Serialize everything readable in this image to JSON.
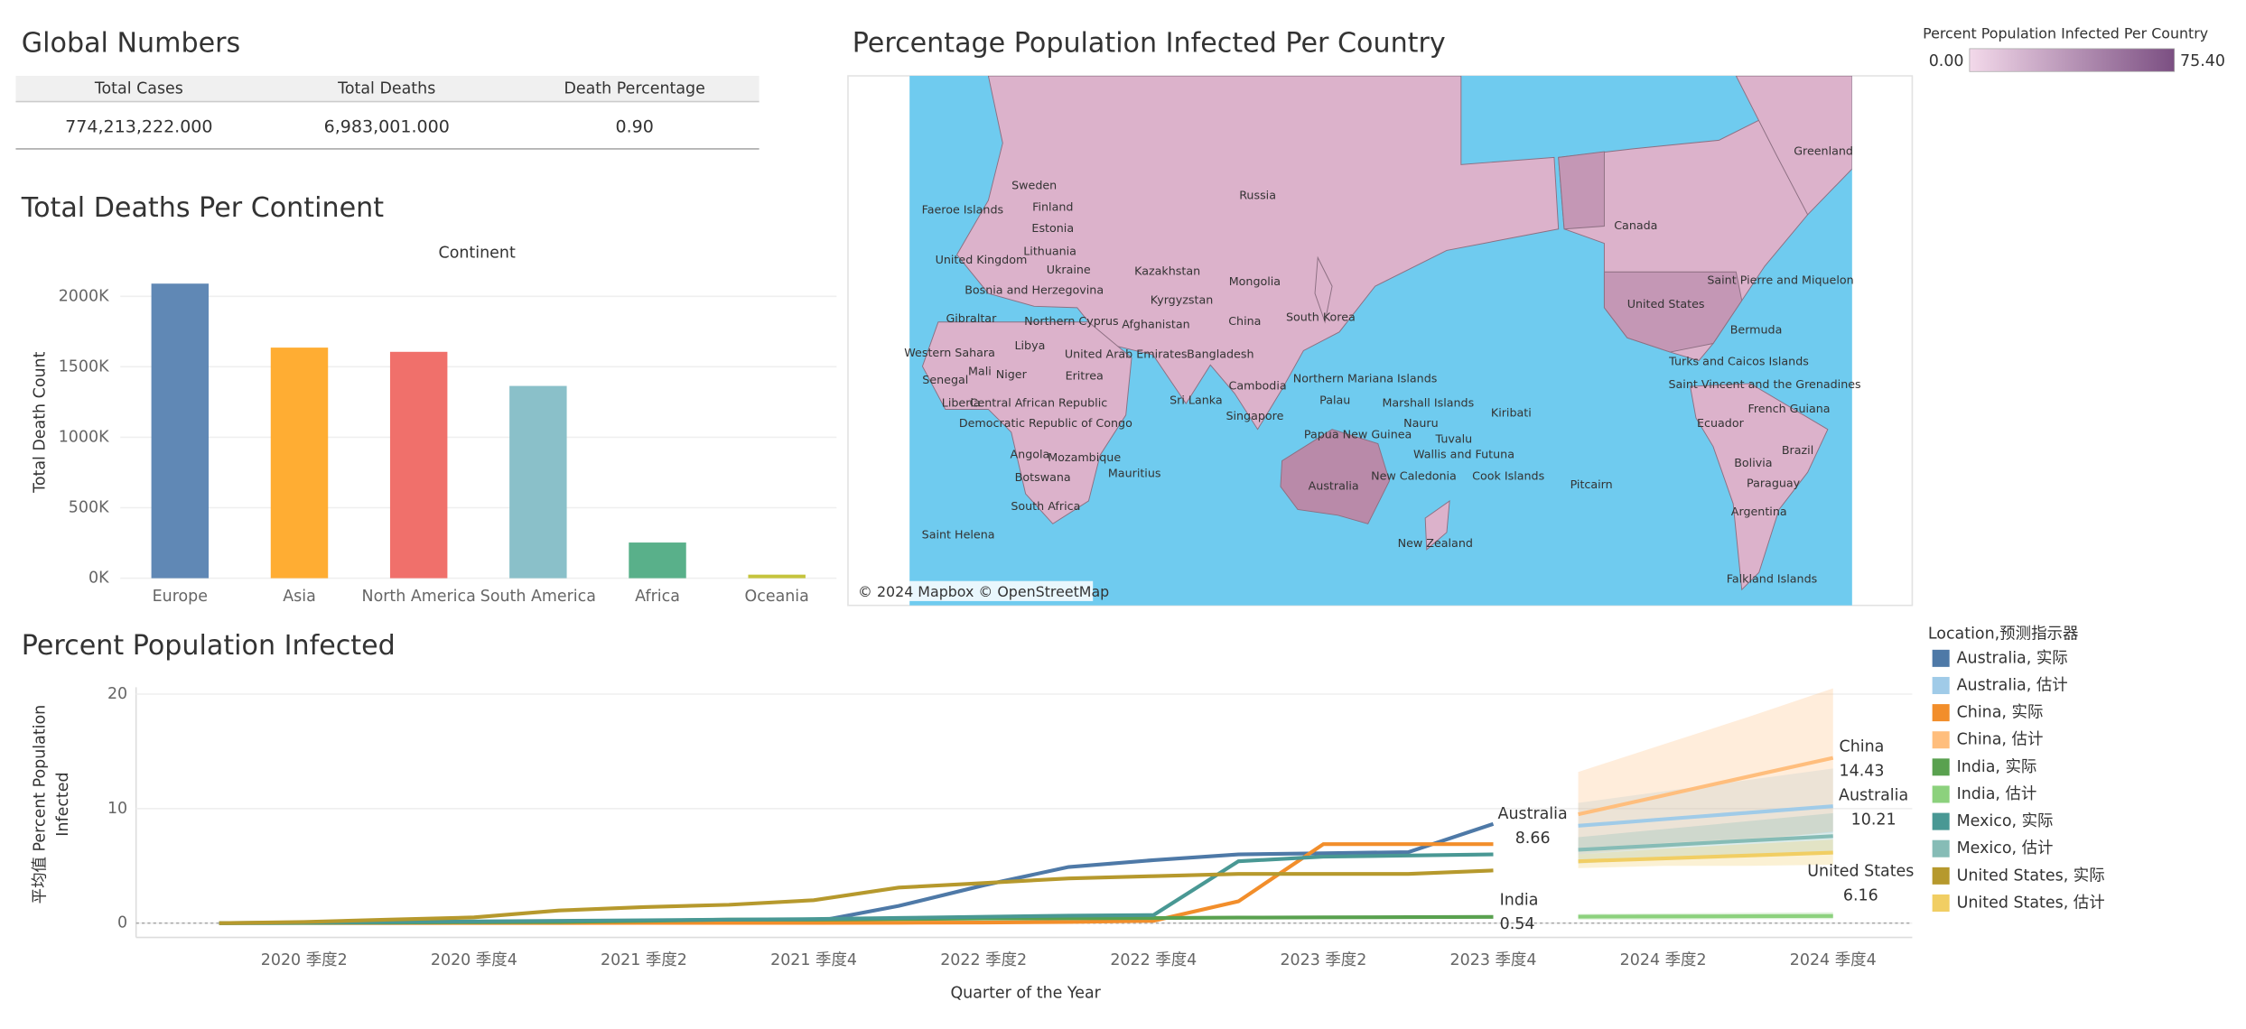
{
  "global_numbers": {
    "title": "Global Numbers",
    "headers": [
      "Total Cases",
      "Total Deaths",
      "Death Percentage"
    ],
    "rows": [
      [
        "774,213,222.000",
        "6,983,001.000",
        "0.90"
      ]
    ]
  },
  "map": {
    "title": "Percentage Population Infected Per Country",
    "legend": {
      "title": "Percent Population Infected Per Country",
      "min": {
        "value": 0,
        "label": "0.00"
      },
      "max": {
        "value": 75.4,
        "label": "75.40"
      }
    },
    "attribution": "© 2024 Mapbox © OpenStreetMap",
    "labels": [
      "Russia",
      "Greenland",
      "Canada",
      "Sweden",
      "Finland",
      "Faeroe Islands",
      "Estonia",
      "Lithuania",
      "United Kingdom",
      "Ukraine",
      "Kazakhstan",
      "Mongolia",
      "Bosnia and Herzegovina",
      "Kyrgyzstan",
      "Gibraltar",
      "Northern Cyprus",
      "Afghanistan",
      "China",
      "South Korea",
      "Saint Pierre and Miquelon",
      "United States",
      "Bermuda",
      "Libya",
      "United Arab Emirates",
      "Bangladesh",
      "Western Sahara",
      "Senegal",
      "Mali",
      "Niger",
      "Eritrea",
      "Northern Mariana Islands",
      "Cambodia",
      "Turks and Caicos Islands",
      "Saint Vincent and the Grenadines",
      "Liberia",
      "Central African Republic",
      "Sri Lanka",
      "Palau",
      "Marshall Islands",
      "Kiribati",
      "French Guiana",
      "Singapore",
      "Nauru",
      "Democratic Republic of Congo",
      "Ecuador",
      "Papua New Guinea",
      "Tuvalu",
      "Wallis and Futuna",
      "Brazil",
      "Angola",
      "Mozambique",
      "Bolivia",
      "Mauritius",
      "New Caledonia",
      "Cook Islands",
      "Pitcairn",
      "Botswana",
      "Paraguay",
      "Australia",
      "South Africa",
      "Argentina",
      "Saint Helena",
      "New Zealand",
      "Falkland Islands"
    ]
  },
  "chart_data": [
    {
      "type": "bar",
      "title": "Total Deaths Per Continent",
      "header": "Continent",
      "ylabel": "Total Death Count",
      "categories": [
        "Europe",
        "Asia",
        "North America",
        "South America",
        "Africa",
        "Oceania"
      ],
      "values": [
        2090000,
        1636000,
        1606000,
        1364000,
        253000,
        25000
      ],
      "colors": [
        "#6088b5",
        "#ffad33",
        "#f0706b",
        "#8ac0c9",
        "#59b08a",
        "#c5c43c"
      ],
      "ylim": [
        0,
        2170000
      ],
      "yticks": [
        {
          "value": 0,
          "label": "0K"
        },
        {
          "value": 500000,
          "label": "500K"
        },
        {
          "value": 1000000,
          "label": "1000K"
        },
        {
          "value": 1500000,
          "label": "1500K"
        },
        {
          "value": 2000000,
          "label": "2000K"
        }
      ],
      "grid": true
    },
    {
      "type": "line",
      "title": "Percent Population Infected",
      "xlabel": "Quarter of the Year",
      "ylabel": [
        "平均值 Percent Population",
        "Infected"
      ],
      "categories": [
        null,
        "2020 季度2",
        null,
        "2020 季度4",
        null,
        "2021 季度2",
        null,
        "2021 季度4",
        null,
        "2022 季度2",
        null,
        "2022 季度4",
        null,
        "2023 季度2",
        null,
        "2023 季度4",
        null,
        "2024 季度2",
        null,
        "2024 季度4"
      ],
      "ylim": [
        -0.7,
        20.6
      ],
      "yticks": [
        0,
        10,
        20
      ],
      "grid": true,
      "legend_title": "Location,预测指示器",
      "series": [
        {
          "name": "Australia, 实际",
          "color": "#4e79a7",
          "values": [
            0,
            0.01,
            0.01,
            0.02,
            0.03,
            0.04,
            0.06,
            0.1,
            1.5,
            3.3,
            4.9,
            5.5,
            6.0,
            6.1,
            6.2,
            8.66,
            null,
            null,
            null,
            null
          ]
        },
        {
          "name": "Australia, 估计",
          "color": "#a0cbe8",
          "values": [
            null,
            null,
            null,
            null,
            null,
            null,
            null,
            null,
            null,
            null,
            null,
            null,
            null,
            null,
            null,
            null,
            8.5,
            9.07,
            9.64,
            10.21
          ],
          "lower": [
            6.5,
            7,
            7.4,
            7.9
          ],
          "upper": [
            10.5,
            11.5,
            12.5,
            13.5
          ]
        },
        {
          "name": "China, 实际",
          "color": "#f28e2b",
          "values": [
            0.01,
            0.01,
            0.01,
            0.01,
            0.01,
            0.02,
            0.02,
            0.02,
            0.03,
            0.05,
            0.1,
            0.2,
            1.9,
            6.9,
            6.9,
            6.9,
            null,
            null,
            null,
            null
          ]
        },
        {
          "name": "China, 估计",
          "color": "#ffbe7d",
          "values": [
            null,
            null,
            null,
            null,
            null,
            null,
            null,
            null,
            null,
            null,
            null,
            null,
            null,
            null,
            null,
            null,
            9.5,
            11.14,
            12.79,
            14.43
          ],
          "lower": [
            6.0,
            6.6,
            7.2,
            8.0
          ],
          "upper": [
            13.2,
            15.6,
            18,
            20.5
          ]
        },
        {
          "name": "India, 实际",
          "color": "#59a14f",
          "values": [
            0,
            0.02,
            0.05,
            0.08,
            0.1,
            0.2,
            0.3,
            0.3,
            0.35,
            0.4,
            0.42,
            0.44,
            0.48,
            0.5,
            0.52,
            0.54,
            null,
            null,
            null,
            null
          ]
        },
        {
          "name": "India, 估计",
          "color": "#8cd17d",
          "values": [
            null,
            null,
            null,
            null,
            null,
            null,
            null,
            null,
            null,
            null,
            null,
            null,
            null,
            null,
            null,
            null,
            0.56,
            0.58,
            0.6,
            0.62
          ],
          "lower": [
            0.3,
            0.3,
            0.35,
            0.35
          ],
          "upper": [
            0.8,
            0.85,
            0.9,
            0.95
          ]
        },
        {
          "name": "Mexico, 实际",
          "color": "#499894",
          "values": [
            0,
            0.05,
            0.1,
            0.15,
            0.2,
            0.25,
            0.3,
            0.35,
            0.45,
            0.55,
            0.65,
            0.7,
            5.4,
            5.8,
            5.9,
            6.0,
            null,
            null,
            null,
            null
          ]
        },
        {
          "name": "Mexico, 估计",
          "color": "#86bcb6",
          "values": [
            null,
            null,
            null,
            null,
            null,
            null,
            null,
            null,
            null,
            null,
            null,
            null,
            null,
            null,
            null,
            null,
            6.4,
            6.8,
            7.2,
            7.6
          ],
          "lower": [
            5.2,
            5.6,
            5.8,
            6
          ],
          "upper": [
            7.5,
            8.2,
            8.9,
            9.6
          ]
        },
        {
          "name": "United States, 实际",
          "color": "#b6992d",
          "values": [
            0,
            0.1,
            0.3,
            0.5,
            1.1,
            1.4,
            1.6,
            2.0,
            3.1,
            3.5,
            3.9,
            4.1,
            4.3,
            4.3,
            4.3,
            4.6,
            null,
            null,
            null,
            null
          ]
        },
        {
          "name": "United States, 估计",
          "color": "#f1ce63",
          "values": [
            null,
            null,
            null,
            null,
            null,
            null,
            null,
            null,
            null,
            null,
            null,
            null,
            null,
            null,
            null,
            null,
            5.4,
            5.65,
            5.9,
            6.16
          ],
          "lower": [
            4.8,
            5,
            5,
            5.1
          ],
          "upper": [
            6.0,
            6.5,
            6.9,
            7.3
          ]
        }
      ],
      "annotations": [
        {
          "label": "Australia",
          "value": 8.66
        },
        {
          "label": "India",
          "value": 0.54
        },
        {
          "label": "China",
          "value": 14.43
        },
        {
          "label": "Australia",
          "value": 10.21
        },
        {
          "label": "United States",
          "value": 6.16
        }
      ]
    }
  ]
}
